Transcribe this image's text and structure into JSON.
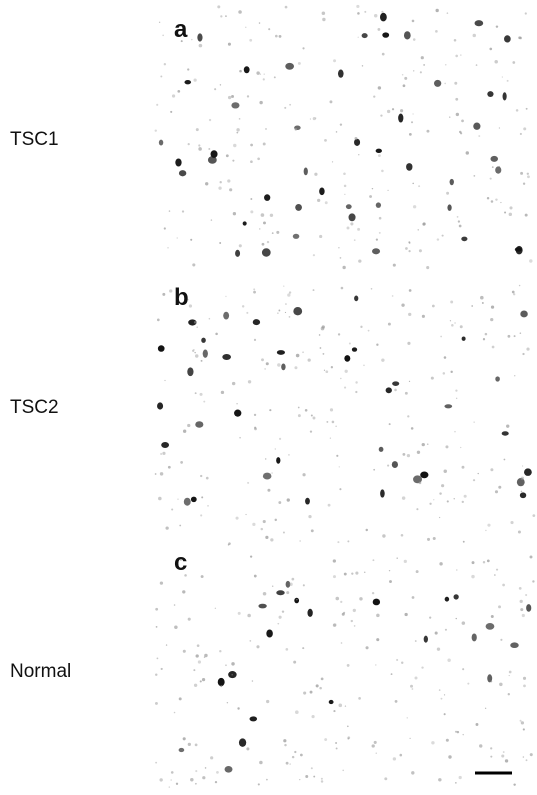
{
  "panels": [
    {
      "letter": "a",
      "label": "TSC1"
    },
    {
      "letter": "b",
      "label": "TSC2"
    },
    {
      "letter": "c",
      "label": "Normal"
    }
  ]
}
